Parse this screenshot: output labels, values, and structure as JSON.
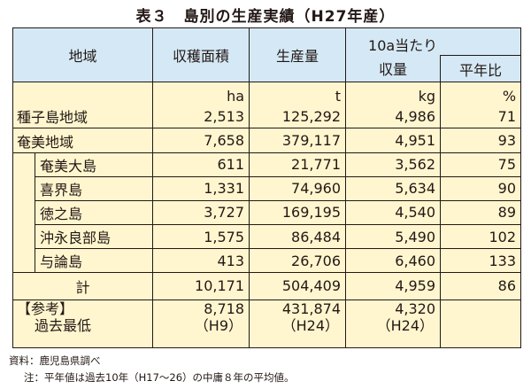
{
  "title": "表３　島別の生産実績（H27年産）",
  "headers": {
    "region": "地域",
    "area": "収穫面積",
    "production": "生産量",
    "yield_line1": "10a当たり",
    "yield_line2": "収量",
    "ratio": "平年比"
  },
  "units": {
    "area": "ha",
    "production": "t",
    "yield": "kg",
    "ratio": "%"
  },
  "rows": {
    "tanegashima": {
      "name": "種子島地域",
      "area": "2,513",
      "production": "125,292",
      "yield": "4,986",
      "ratio": "71"
    },
    "amami": {
      "name": "奄美地域",
      "area": "7,658",
      "production": "379,117",
      "yield": "4,951",
      "ratio": "93"
    },
    "amami_oshima": {
      "name": "奄美大島",
      "area": "611",
      "production": "21,771",
      "yield": "3,562",
      "ratio": "75"
    },
    "kikaijima": {
      "name": "喜界島",
      "area": "1,331",
      "production": "74,960",
      "yield": "5,634",
      "ratio": "90"
    },
    "tokunoshima": {
      "name": "徳之島",
      "area": "3,727",
      "production": "169,195",
      "yield": "4,540",
      "ratio": "89"
    },
    "okinoerabu": {
      "name": "沖永良部島",
      "area": "1,575",
      "production": "86,484",
      "yield": "5,490",
      "ratio": "102"
    },
    "yoron": {
      "name": "与論島",
      "area": "413",
      "production": "26,706",
      "yield": "6,460",
      "ratio": "133"
    },
    "total": {
      "name": "計",
      "area": "10,171",
      "production": "504,409",
      "yield": "4,959",
      "ratio": "86"
    }
  },
  "reference": {
    "label_line1": "【参考】",
    "label_line2": "過去最低",
    "area": "8,718",
    "area_year": "（H9）",
    "production": "431,874",
    "production_year": "（H24）",
    "yield": "4,320",
    "yield_year": "（H24）"
  },
  "footnotes": {
    "source": "資料：鹿児島県調べ",
    "note": "注：平年値は過去10年（H17〜26）の中庸８年の平均値。"
  }
}
